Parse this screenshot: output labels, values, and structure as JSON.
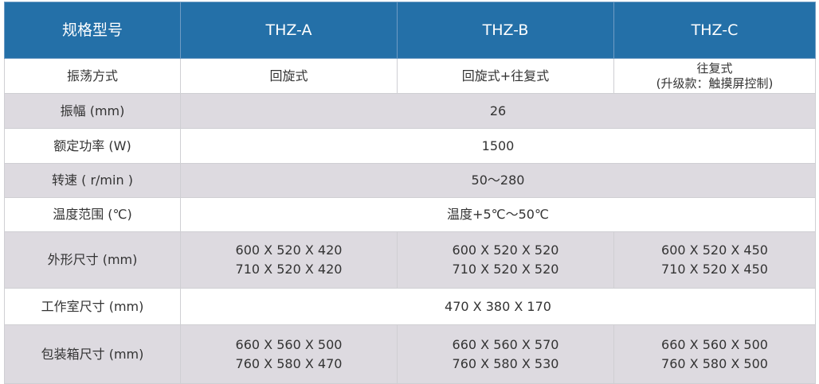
{
  "colors": {
    "header_bg": "#2470a8",
    "alt_row_bg": "#dddae0"
  },
  "header": [
    "规格型号",
    "THZ-A",
    "THZ-B",
    "THZ-C"
  ],
  "rows": {
    "oscillation": {
      "label": "振荡方式",
      "a": "回旋式",
      "b": "回旋式+往复式",
      "c_line1": "往复式",
      "c_line2": "(升级款：触摸屏控制)"
    },
    "amplitude": {
      "label": "振幅 (mm)",
      "value": "26"
    },
    "power": {
      "label": "额定功率 (W)",
      "value": "1500"
    },
    "speed": {
      "label": "转速 ( r/min )",
      "value": "50～280"
    },
    "temperature": {
      "label": "温度范围 (℃)",
      "value": "温度+5℃～50℃"
    },
    "outer_size": {
      "label": "外形尺寸 (mm)",
      "a": [
        "600 X 520 X 420",
        "710 X 520 X 420"
      ],
      "b": [
        "600 X 520 X 520",
        "710 X 520 X 520"
      ],
      "c": [
        "600 X 520 X 450",
        "710 X 520 X 450"
      ]
    },
    "chamber_size": {
      "label": "工作室尺寸 (mm)",
      "value": "470 X 380 X 170"
    },
    "package_size": {
      "label": "包装箱尺寸 (mm)",
      "a": [
        "660 X 560 X 500",
        "760 X 580 X 470"
      ],
      "b": [
        "660 X 560 X 570",
        "760 X 580 X 530"
      ],
      "c": [
        "660 X 560 X 500",
        "760 X 580 X 500"
      ]
    }
  }
}
